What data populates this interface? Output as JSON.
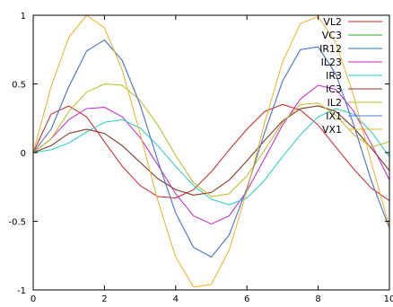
{
  "chart_data": {
    "type": "line",
    "title": "",
    "xlabel": "",
    "ylabel": "",
    "xlim": [
      0,
      10
    ],
    "ylim": [
      -1,
      1
    ],
    "xticks": [
      "0",
      "2",
      "4",
      "6",
      "8",
      "10"
    ],
    "yticks": [
      "1",
      "0.5",
      "0",
      "-0.5",
      "-1"
    ],
    "grid": false,
    "legend": "top-right",
    "series": [
      {
        "name": "VL2",
        "color": "#cc2222",
        "x": [
          0,
          0.5,
          1,
          1.5,
          2,
          2.5,
          3,
          3.5,
          4,
          4.5,
          5,
          5.5,
          6,
          6.5,
          7,
          7.5,
          8,
          8.5,
          9,
          9.5,
          10
        ],
        "y": [
          0,
          0.28,
          0.34,
          0.26,
          0.08,
          -0.1,
          -0.24,
          -0.32,
          -0.33,
          -0.27,
          -0.14,
          0.02,
          0.17,
          0.3,
          0.35,
          0.31,
          0.2,
          0.04,
          -0.12,
          -0.26,
          -0.35
        ]
      },
      {
        "name": "VC3",
        "color": "#22aa22",
        "x": [
          0,
          0.5,
          1,
          1.5,
          2,
          2.5,
          3,
          3.5,
          4,
          4.5,
          5,
          5.5,
          6,
          6.5,
          7,
          7.5,
          8,
          8.5,
          9,
          9.5,
          10
        ],
        "y": [
          0,
          0.05,
          0.14,
          0.17,
          0.14,
          0.05,
          -0.07,
          -0.19,
          -0.27,
          -0.31,
          -0.29,
          -0.2,
          -0.06,
          0.09,
          0.23,
          0.32,
          0.34,
          0.3,
          0.18,
          0.03,
          -0.13
        ]
      },
      {
        "name": "IR12",
        "color": "#2277cc",
        "x": [
          0,
          0.5,
          1,
          1.5,
          2,
          2.5,
          3,
          3.5,
          4,
          4.5,
          5,
          5.5,
          6,
          6.5,
          7,
          7.5,
          8,
          8.5,
          9,
          9.5,
          10
        ],
        "y": [
          0,
          0.17,
          0.48,
          0.74,
          0.82,
          0.67,
          0.35,
          -0.06,
          -0.44,
          -0.69,
          -0.76,
          -0.6,
          -0.26,
          0.15,
          0.52,
          0.75,
          0.77,
          0.57,
          0.2,
          -0.21,
          -0.55
        ]
      },
      {
        "name": "IL23",
        "color": "#cc22cc",
        "x": [
          0,
          0.5,
          1,
          1.5,
          2,
          2.5,
          3,
          3.5,
          4,
          4.5,
          5,
          5.5,
          6,
          6.5,
          7,
          7.5,
          8,
          8.5,
          9,
          9.5,
          10
        ],
        "y": [
          0,
          0.1,
          0.24,
          0.32,
          0.33,
          0.26,
          0.11,
          -0.09,
          -0.3,
          -0.46,
          -0.52,
          -0.46,
          -0.28,
          -0.04,
          0.2,
          0.39,
          0.49,
          0.46,
          0.3,
          0.06,
          -0.2
        ]
      },
      {
        "name": "IR3",
        "color": "#22cccc",
        "x": [
          0,
          0.5,
          1,
          1.5,
          2,
          2.5,
          3,
          3.5,
          4,
          4.5,
          5,
          5.5,
          6,
          6.5,
          7,
          7.5,
          8,
          8.5,
          9,
          9.5,
          10
        ],
        "y": [
          0,
          0.02,
          0.07,
          0.15,
          0.22,
          0.24,
          0.18,
          0.05,
          -0.1,
          -0.24,
          -0.34,
          -0.38,
          -0.33,
          -0.2,
          -0.03,
          0.13,
          0.26,
          0.32,
          0.28,
          0.15,
          -0.03
        ]
      },
      {
        "name": "IC3",
        "color": "#993333",
        "x": [
          0,
          0.5,
          1,
          1.5,
          2,
          2.5,
          3,
          3.5,
          4,
          4.5,
          5,
          5.5,
          6,
          6.5,
          7,
          7.5,
          8,
          8.5,
          9,
          9.5,
          10
        ],
        "y": [
          0,
          0.05,
          0.14,
          0.17,
          0.14,
          0.05,
          -0.07,
          -0.19,
          -0.27,
          -0.31,
          -0.29,
          -0.2,
          -0.06,
          0.09,
          0.23,
          0.32,
          0.34,
          0.3,
          0.18,
          0.03,
          -0.13
        ]
      },
      {
        "name": "IL2",
        "color": "#bbbb22",
        "x": [
          0,
          0.5,
          1,
          1.5,
          2,
          2.5,
          3,
          3.5,
          4,
          4.5,
          5,
          5.5,
          6,
          6.5,
          7,
          7.5,
          8,
          8.5,
          9,
          9.5,
          10
        ],
        "y": [
          0,
          0.1,
          0.3,
          0.44,
          0.5,
          0.49,
          0.38,
          0.2,
          -0.02,
          -0.22,
          -0.32,
          -0.3,
          -0.17,
          0.02,
          0.22,
          0.35,
          0.36,
          0.27,
          0.13,
          0.04,
          0.08
        ]
      },
      {
        "name": "IX1",
        "color": "#5577cc",
        "x": [
          0,
          0.5,
          1,
          1.5,
          2,
          2.5,
          3,
          3.5,
          4,
          4.5,
          5,
          5.5,
          6,
          6.5,
          7,
          7.5,
          8,
          8.5,
          9,
          9.5,
          10
        ],
        "y": [
          0,
          0.17,
          0.48,
          0.74,
          0.82,
          0.67,
          0.35,
          -0.06,
          -0.44,
          -0.69,
          -0.76,
          -0.6,
          -0.26,
          0.15,
          0.52,
          0.75,
          0.77,
          0.57,
          0.2,
          -0.21,
          -0.55
        ]
      },
      {
        "name": "VX1",
        "color": "#f0b020",
        "x": [
          0,
          0.5,
          1,
          1.5,
          2,
          2.5,
          3,
          3.5,
          4,
          4.5,
          5,
          5.5,
          6,
          6.5,
          7,
          7.5,
          8,
          8.5,
          9,
          9.5,
          10
        ],
        "y": [
          0,
          0.48,
          0.84,
          1.0,
          0.91,
          0.6,
          0.14,
          -0.35,
          -0.76,
          -0.98,
          -0.96,
          -0.71,
          -0.28,
          0.22,
          0.66,
          0.94,
          0.99,
          0.8,
          0.41,
          -0.08,
          -0.54
        ]
      }
    ]
  }
}
